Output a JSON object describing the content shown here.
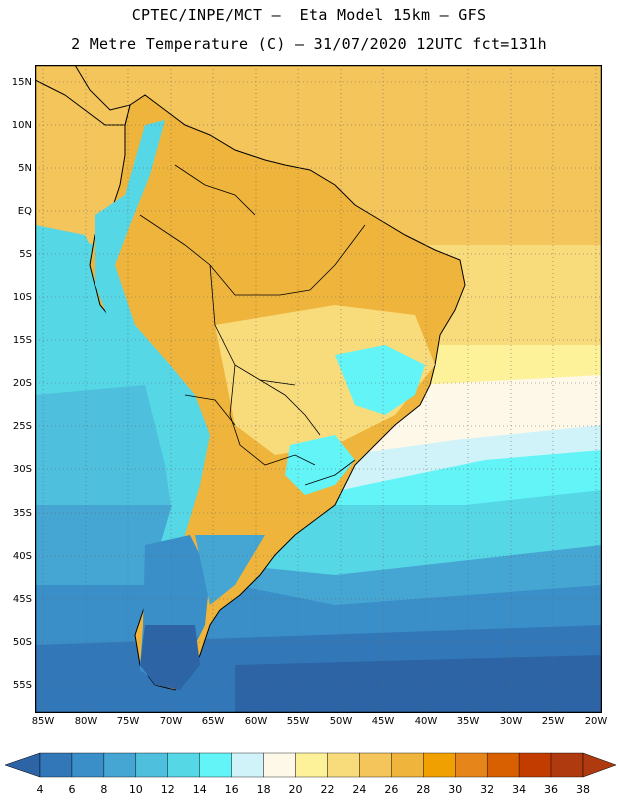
{
  "title": {
    "line1": "CPTEC/INPE/MCT –  Eta Model 15km – GFS",
    "line2": "2 Metre Temperature (C) – 31/07/2020 12UTC fct=131h"
  },
  "axes": {
    "lat_labels": [
      "15N",
      "10N",
      "5N",
      "EQ",
      "5S",
      "10S",
      "15S",
      "20S",
      "25S",
      "30S",
      "35S",
      "40S",
      "45S",
      "50S",
      "55S"
    ],
    "lon_labels": [
      "85W",
      "80W",
      "75W",
      "70W",
      "65W",
      "60W",
      "55W",
      "50W",
      "45W",
      "40W",
      "35W",
      "30W",
      "25W",
      "20W"
    ],
    "lat_range": [
      17.5,
      -57.5
    ],
    "lon_range": [
      -86,
      -20
    ],
    "grid": "dotted"
  },
  "colorbar": {
    "labels": [
      "4",
      "6",
      "8",
      "10",
      "12",
      "14",
      "16",
      "18",
      "20",
      "22",
      "24",
      "26",
      "28",
      "30",
      "32",
      "34",
      "36",
      "38"
    ],
    "colors": [
      "#2c64a6",
      "#3278b8",
      "#3a8fc8",
      "#45a6d3",
      "#4ebfdc",
      "#55d7e6",
      "#62f4f6",
      "#cff3f9",
      "#fdf8e7",
      "#fdf29a",
      "#f8dc7c",
      "#f3c55a",
      "#efb43c",
      "#f0a000",
      "#e6861a",
      "#d96000",
      "#c23c00",
      "#b03a10"
    ]
  }
}
